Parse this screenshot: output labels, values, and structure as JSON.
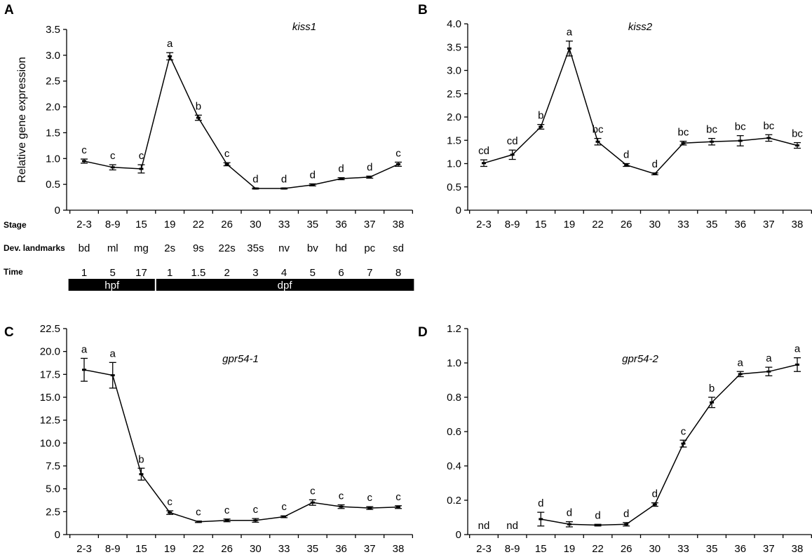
{
  "chart_data": [
    {
      "panel": "A",
      "type": "line",
      "title": "kiss1",
      "ylabel": "Relative gene expression",
      "ylim": [
        0,
        3.5
      ],
      "yticks": [
        "0",
        "0.5",
        "1.0",
        "1.5",
        "2.0",
        "2.5",
        "3.0",
        "3.5"
      ],
      "categories": [
        "2-3",
        "8-9",
        "15",
        "19",
        "22",
        "26",
        "30",
        "33",
        "35",
        "36",
        "37",
        "38"
      ],
      "values": [
        0.95,
        0.83,
        0.8,
        2.98,
        1.79,
        0.89,
        0.42,
        0.42,
        0.49,
        0.61,
        0.64,
        0.89
      ],
      "errors": [
        0.04,
        0.05,
        0.08,
        0.07,
        0.05,
        0.03,
        0.01,
        0.01,
        0.02,
        0.02,
        0.02,
        0.04
      ],
      "letters": [
        "c",
        "c",
        "c",
        "a",
        "b",
        "c",
        "d",
        "d",
        "d",
        "d",
        "d",
        "c"
      ]
    },
    {
      "panel": "B",
      "type": "line",
      "title": "kiss2",
      "ylabel": "",
      "ylim": [
        0,
        4.0
      ],
      "yticks": [
        "0",
        "0.5",
        "1.0",
        "1.5",
        "2.0",
        "2.5",
        "3.0",
        "3.5",
        "4.0"
      ],
      "categories": [
        "2-3",
        "8-9",
        "15",
        "19",
        "22",
        "26",
        "30",
        "33",
        "35",
        "36",
        "37",
        "38"
      ],
      "values": [
        1.01,
        1.19,
        1.79,
        3.47,
        1.47,
        0.97,
        0.78,
        1.44,
        1.47,
        1.49,
        1.55,
        1.39
      ],
      "errors": [
        0.07,
        0.1,
        0.05,
        0.16,
        0.07,
        0.03,
        0.02,
        0.04,
        0.07,
        0.11,
        0.07,
        0.06
      ],
      "letters": [
        "cd",
        "cd",
        "b",
        "a",
        "bc",
        "d",
        "d",
        "bc",
        "bc",
        "bc",
        "bc",
        "bc"
      ]
    },
    {
      "panel": "C",
      "type": "line",
      "title": "gpr54-1",
      "ylabel": "",
      "ylim": [
        0,
        22.5
      ],
      "yticks": [
        "0",
        "2.5",
        "5.0",
        "7.5",
        "10.0",
        "12.5",
        "15.0",
        "17.5",
        "20.0",
        "22.5"
      ],
      "categories": [
        "2-3",
        "8-9",
        "15",
        "19",
        "22",
        "26",
        "30",
        "33",
        "35",
        "36",
        "37",
        "38"
      ],
      "values": [
        18.0,
        17.4,
        6.6,
        2.4,
        1.4,
        1.55,
        1.55,
        1.95,
        3.5,
        3.05,
        2.9,
        3.0
      ],
      "errors": [
        1.25,
        1.4,
        0.65,
        0.2,
        0.08,
        0.15,
        0.2,
        0.1,
        0.3,
        0.2,
        0.15,
        0.15
      ],
      "letters": [
        "a",
        "a",
        "b",
        "c",
        "c",
        "c",
        "c",
        "c",
        "c",
        "c",
        "c",
        "c"
      ]
    },
    {
      "panel": "D",
      "type": "line",
      "title": "gpr54-2",
      "ylabel": "",
      "ylim": [
        0,
        1.2
      ],
      "yticks": [
        "0",
        "0.2",
        "0.4",
        "0.6",
        "0.8",
        "1.0",
        "1.2"
      ],
      "categories": [
        "2-3",
        "8-9",
        "15",
        "19",
        "22",
        "26",
        "30",
        "33",
        "35",
        "36",
        "37",
        "38"
      ],
      "values": [
        null,
        null,
        0.09,
        0.06,
        0.055,
        0.06,
        0.175,
        0.53,
        0.77,
        0.935,
        0.95,
        0.99
      ],
      "errors": [
        null,
        null,
        0.04,
        0.015,
        0.005,
        0.01,
        0.01,
        0.02,
        0.03,
        0.015,
        0.025,
        0.04
      ],
      "letters": [
        "nd",
        "nd",
        "d",
        "d",
        "d",
        "d",
        "d",
        "c",
        "b",
        "a",
        "a",
        "a"
      ]
    }
  ],
  "annotations": {
    "stage_label": "Stage",
    "landmarks_label": "Dev. landmarks",
    "time_label": "Time",
    "landmarks": [
      "bd",
      "ml",
      "mg",
      "2s",
      "9s",
      "22s",
      "35s",
      "nv",
      "bv",
      "hd",
      "pc",
      "sd"
    ],
    "times": [
      "1",
      "5",
      "17",
      "1",
      "1.5",
      "2",
      "3",
      "4",
      "5",
      "6",
      "7",
      "8"
    ],
    "hpf_label": "hpf",
    "dpf_label": "dpf",
    "hpf_count": 3
  }
}
